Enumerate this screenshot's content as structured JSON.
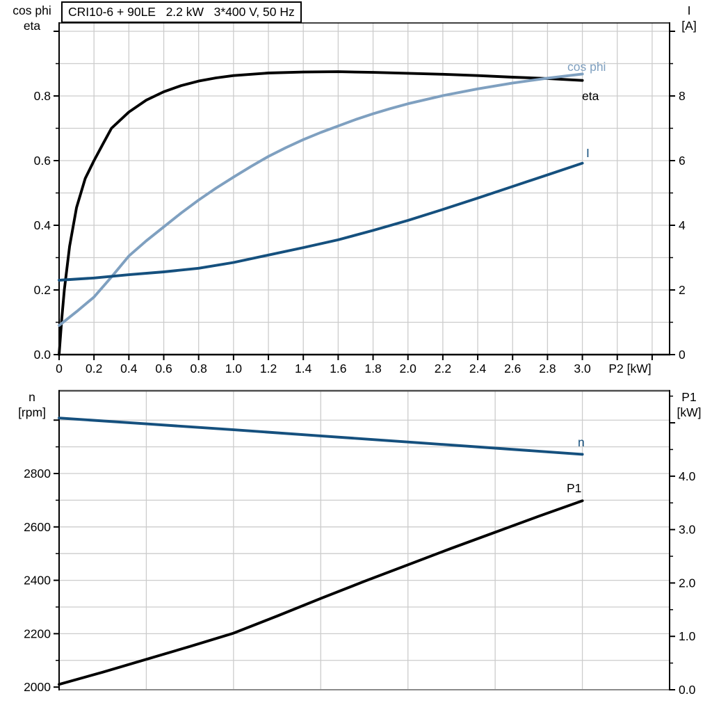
{
  "window": {
    "background": "#ffffff"
  },
  "colors": {
    "curve_black": "#000000",
    "curve_dark_blue": "#15507e",
    "curve_light_blue": "#7fa0c0",
    "grid_gray": "#cccccc",
    "bottom_chart_top_border": "#4d4d4d",
    "bottom_chart_bottom_border": "#8a8a8a",
    "axis_black": "#000000"
  },
  "chart_data": [
    {
      "type": "line",
      "title": "CRI10-6 + 90LE   2.2 kW   3*400 V, 50 Hz",
      "x_axis": {
        "title": "P2 [kW]",
        "min": 0,
        "max": 3.5,
        "major": [
          0,
          0.2,
          0.4,
          0.6,
          0.8,
          1,
          1.2,
          1.4,
          1.6,
          1.8,
          2,
          2.2,
          2.4,
          2.6,
          2.8,
          3,
          3.2,
          3.4
        ],
        "labels": [
          "0",
          "0.2",
          "0.4",
          "0.6",
          "0.8",
          "1.0",
          "1.2",
          "1.4",
          "1.6",
          "1.8",
          "2.0",
          "2.2",
          "2.4",
          "2.6",
          "2.8",
          "3.0",
          "",
          ""
        ],
        "grid": [
          0.2,
          0.4,
          0.6,
          0.8,
          1,
          1.2,
          1.4,
          1.6,
          1.8,
          2,
          2.2,
          2.4,
          2.6,
          2.8,
          3,
          3.2,
          3.4
        ]
      },
      "y_left": {
        "title_lines": [
          "cos phi",
          "eta"
        ],
        "min": 0,
        "max": 1.0258,
        "major": [
          0,
          0.2,
          0.4,
          0.6,
          0.8,
          1
        ],
        "labels": [
          "0.0",
          "0.2",
          "0.4",
          "0.6",
          "0.8",
          ""
        ],
        "minor": [
          0.1,
          0.3,
          0.5,
          0.7,
          0.9
        ]
      },
      "y_right": {
        "title_lines": [
          "I",
          "[A]"
        ],
        "min": 0,
        "max": 10.258,
        "major": [
          0,
          2,
          4,
          6,
          8,
          10
        ],
        "labels": [
          "0",
          "2",
          "4",
          "6",
          "8",
          ""
        ],
        "minor": [
          1,
          3,
          5,
          7,
          9
        ]
      },
      "hgrid": {
        "axis": "left",
        "values": [
          0.1,
          0.2,
          0.3,
          0.4,
          0.5,
          0.6,
          0.7,
          0.8,
          0.9,
          1
        ]
      },
      "series": [
        {
          "name": "eta",
          "label": "eta",
          "axis": "left",
          "color": "#000000",
          "points": [
            [
              0,
              0
            ],
            [
              0.015,
              0.11
            ],
            [
              0.03,
              0.2
            ],
            [
              0.06,
              0.335
            ],
            [
              0.1,
              0.455
            ],
            [
              0.15,
              0.545
            ],
            [
              0.2,
              0.6
            ],
            [
              0.25,
              0.65
            ],
            [
              0.3,
              0.7
            ],
            [
              0.4,
              0.75
            ],
            [
              0.5,
              0.787
            ],
            [
              0.6,
              0.813
            ],
            [
              0.7,
              0.832
            ],
            [
              0.8,
              0.846
            ],
            [
              0.9,
              0.856
            ],
            [
              1,
              0.863
            ],
            [
              1.2,
              0.871
            ],
            [
              1.4,
              0.874
            ],
            [
              1.6,
              0.875
            ],
            [
              1.8,
              0.873
            ],
            [
              2,
              0.87
            ],
            [
              2.2,
              0.867
            ],
            [
              2.4,
              0.863
            ],
            [
              2.6,
              0.858
            ],
            [
              2.8,
              0.854
            ],
            [
              3,
              0.848
            ]
          ]
        },
        {
          "name": "cos phi",
          "label": "cos phi",
          "axis": "left",
          "color": "#7fa0c0",
          "points": [
            [
              0,
              0.09
            ],
            [
              0.1,
              0.133
            ],
            [
              0.2,
              0.178
            ],
            [
              0.3,
              0.24
            ],
            [
              0.4,
              0.305
            ],
            [
              0.5,
              0.352
            ],
            [
              0.6,
              0.395
            ],
            [
              0.7,
              0.438
            ],
            [
              0.8,
              0.478
            ],
            [
              0.9,
              0.515
            ],
            [
              1,
              0.549
            ],
            [
              1.1,
              0.582
            ],
            [
              1.2,
              0.613
            ],
            [
              1.3,
              0.64
            ],
            [
              1.4,
              0.665
            ],
            [
              1.5,
              0.687
            ],
            [
              1.6,
              0.707
            ],
            [
              1.7,
              0.727
            ],
            [
              1.8,
              0.745
            ],
            [
              1.9,
              0.761
            ],
            [
              2,
              0.776
            ],
            [
              2.2,
              0.801
            ],
            [
              2.4,
              0.822
            ],
            [
              2.6,
              0.84
            ],
            [
              2.8,
              0.855
            ],
            [
              3,
              0.868
            ]
          ]
        },
        {
          "name": "I",
          "label": "I",
          "axis": "right",
          "color": "#15507e",
          "points": [
            [
              0,
              2.3
            ],
            [
              0.2,
              2.37
            ],
            [
              0.4,
              2.47
            ],
            [
              0.6,
              2.56
            ],
            [
              0.8,
              2.67
            ],
            [
              1,
              2.85
            ],
            [
              1.2,
              3.08
            ],
            [
              1.4,
              3.31
            ],
            [
              1.6,
              3.55
            ],
            [
              1.8,
              3.84
            ],
            [
              2,
              4.15
            ],
            [
              2.2,
              4.49
            ],
            [
              2.4,
              4.84
            ],
            [
              2.6,
              5.2
            ],
            [
              2.8,
              5.56
            ],
            [
              3,
              5.92
            ]
          ]
        }
      ]
    },
    {
      "type": "line",
      "title": "",
      "x_axis": {
        "title": "",
        "min": 0,
        "max": 3.5,
        "major": [],
        "labels": [],
        "grid": [
          0.5,
          1,
          1.5,
          2,
          2.5,
          3
        ]
      },
      "y_left": {
        "title_lines": [
          "n",
          "[rpm]"
        ],
        "min": 1990,
        "max": 3110,
        "major": [
          2000,
          2200,
          2400,
          2600,
          2800,
          3000
        ],
        "labels": [
          "2000",
          "2200",
          "2400",
          "2600",
          "2800",
          ""
        ],
        "minor": [
          2100,
          2300,
          2500,
          2700,
          2900
        ]
      },
      "y_right": {
        "title_lines": [
          "P1",
          "[kW]"
        ],
        "min": 0,
        "max": 5.6,
        "major": [
          0,
          1,
          2,
          3,
          4,
          5
        ],
        "labels": [
          "0.0",
          "1.0",
          "2.0",
          "3.0",
          "4.0",
          ""
        ],
        "minor": [
          0.5,
          1.5,
          2.5,
          3.5,
          4.5,
          5.5
        ]
      },
      "hgrid": {
        "axis": "left",
        "values": [
          2100,
          2200,
          2300,
          2400,
          2500,
          2600,
          2700,
          2800,
          2900,
          3000
        ]
      },
      "series": [
        {
          "name": "n",
          "label": "n",
          "axis": "left",
          "color": "#15507e",
          "points": [
            [
              0,
              3008
            ],
            [
              0.5,
              2986
            ],
            [
              1,
              2964
            ],
            [
              1.5,
              2941
            ],
            [
              2,
              2918
            ],
            [
              2.5,
              2895
            ],
            [
              3,
              2872
            ]
          ]
        },
        {
          "name": "P1",
          "label": "P1",
          "axis": "right",
          "color": "#000000",
          "points": [
            [
              0,
              0.1
            ],
            [
              0.25,
              0.33
            ],
            [
              0.5,
              0.57
            ],
            [
              0.75,
              0.81
            ],
            [
              1,
              1.06
            ],
            [
              1.25,
              1.38
            ],
            [
              1.5,
              1.71
            ],
            [
              1.75,
              2.03
            ],
            [
              2,
              2.34
            ],
            [
              2.25,
              2.65
            ],
            [
              2.5,
              2.95
            ],
            [
              2.75,
              3.25
            ],
            [
              3,
              3.54
            ]
          ]
        }
      ]
    }
  ]
}
